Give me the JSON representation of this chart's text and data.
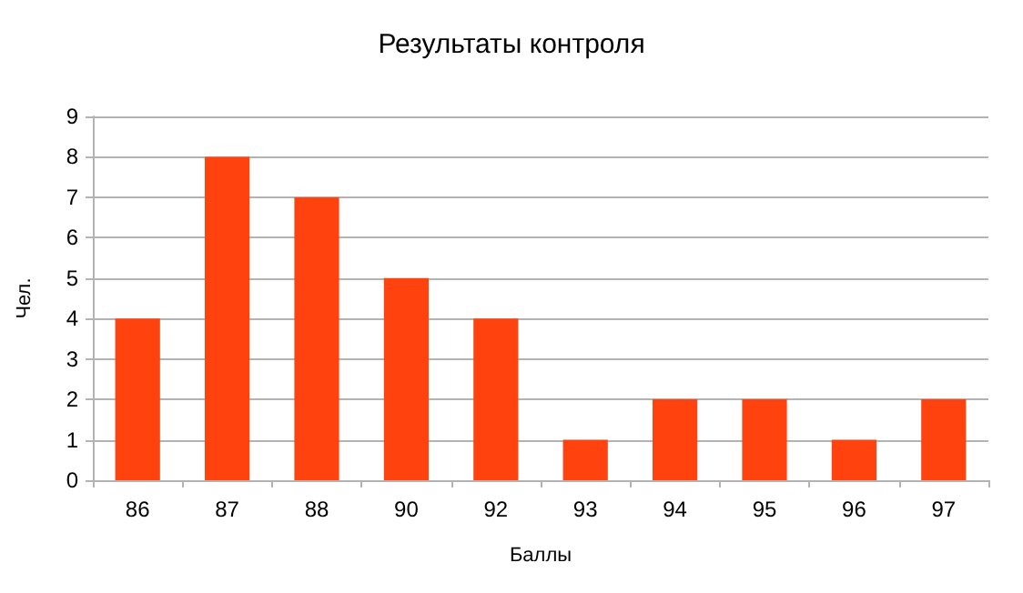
{
  "chart_data": {
    "type": "bar",
    "title": "Результаты контроля",
    "xlabel": "Баллы",
    "ylabel": "Чел.",
    "categories": [
      "86",
      "87",
      "88",
      "90",
      "92",
      "93",
      "94",
      "95",
      "96",
      "97"
    ],
    "values": [
      4,
      8,
      7,
      5,
      4,
      1,
      2,
      2,
      1,
      2
    ],
    "color": "#ff420e",
    "ylim": [
      0,
      9
    ],
    "yticks": [
      0,
      1,
      2,
      3,
      4,
      5,
      6,
      7,
      8,
      9
    ],
    "grid": "y"
  }
}
